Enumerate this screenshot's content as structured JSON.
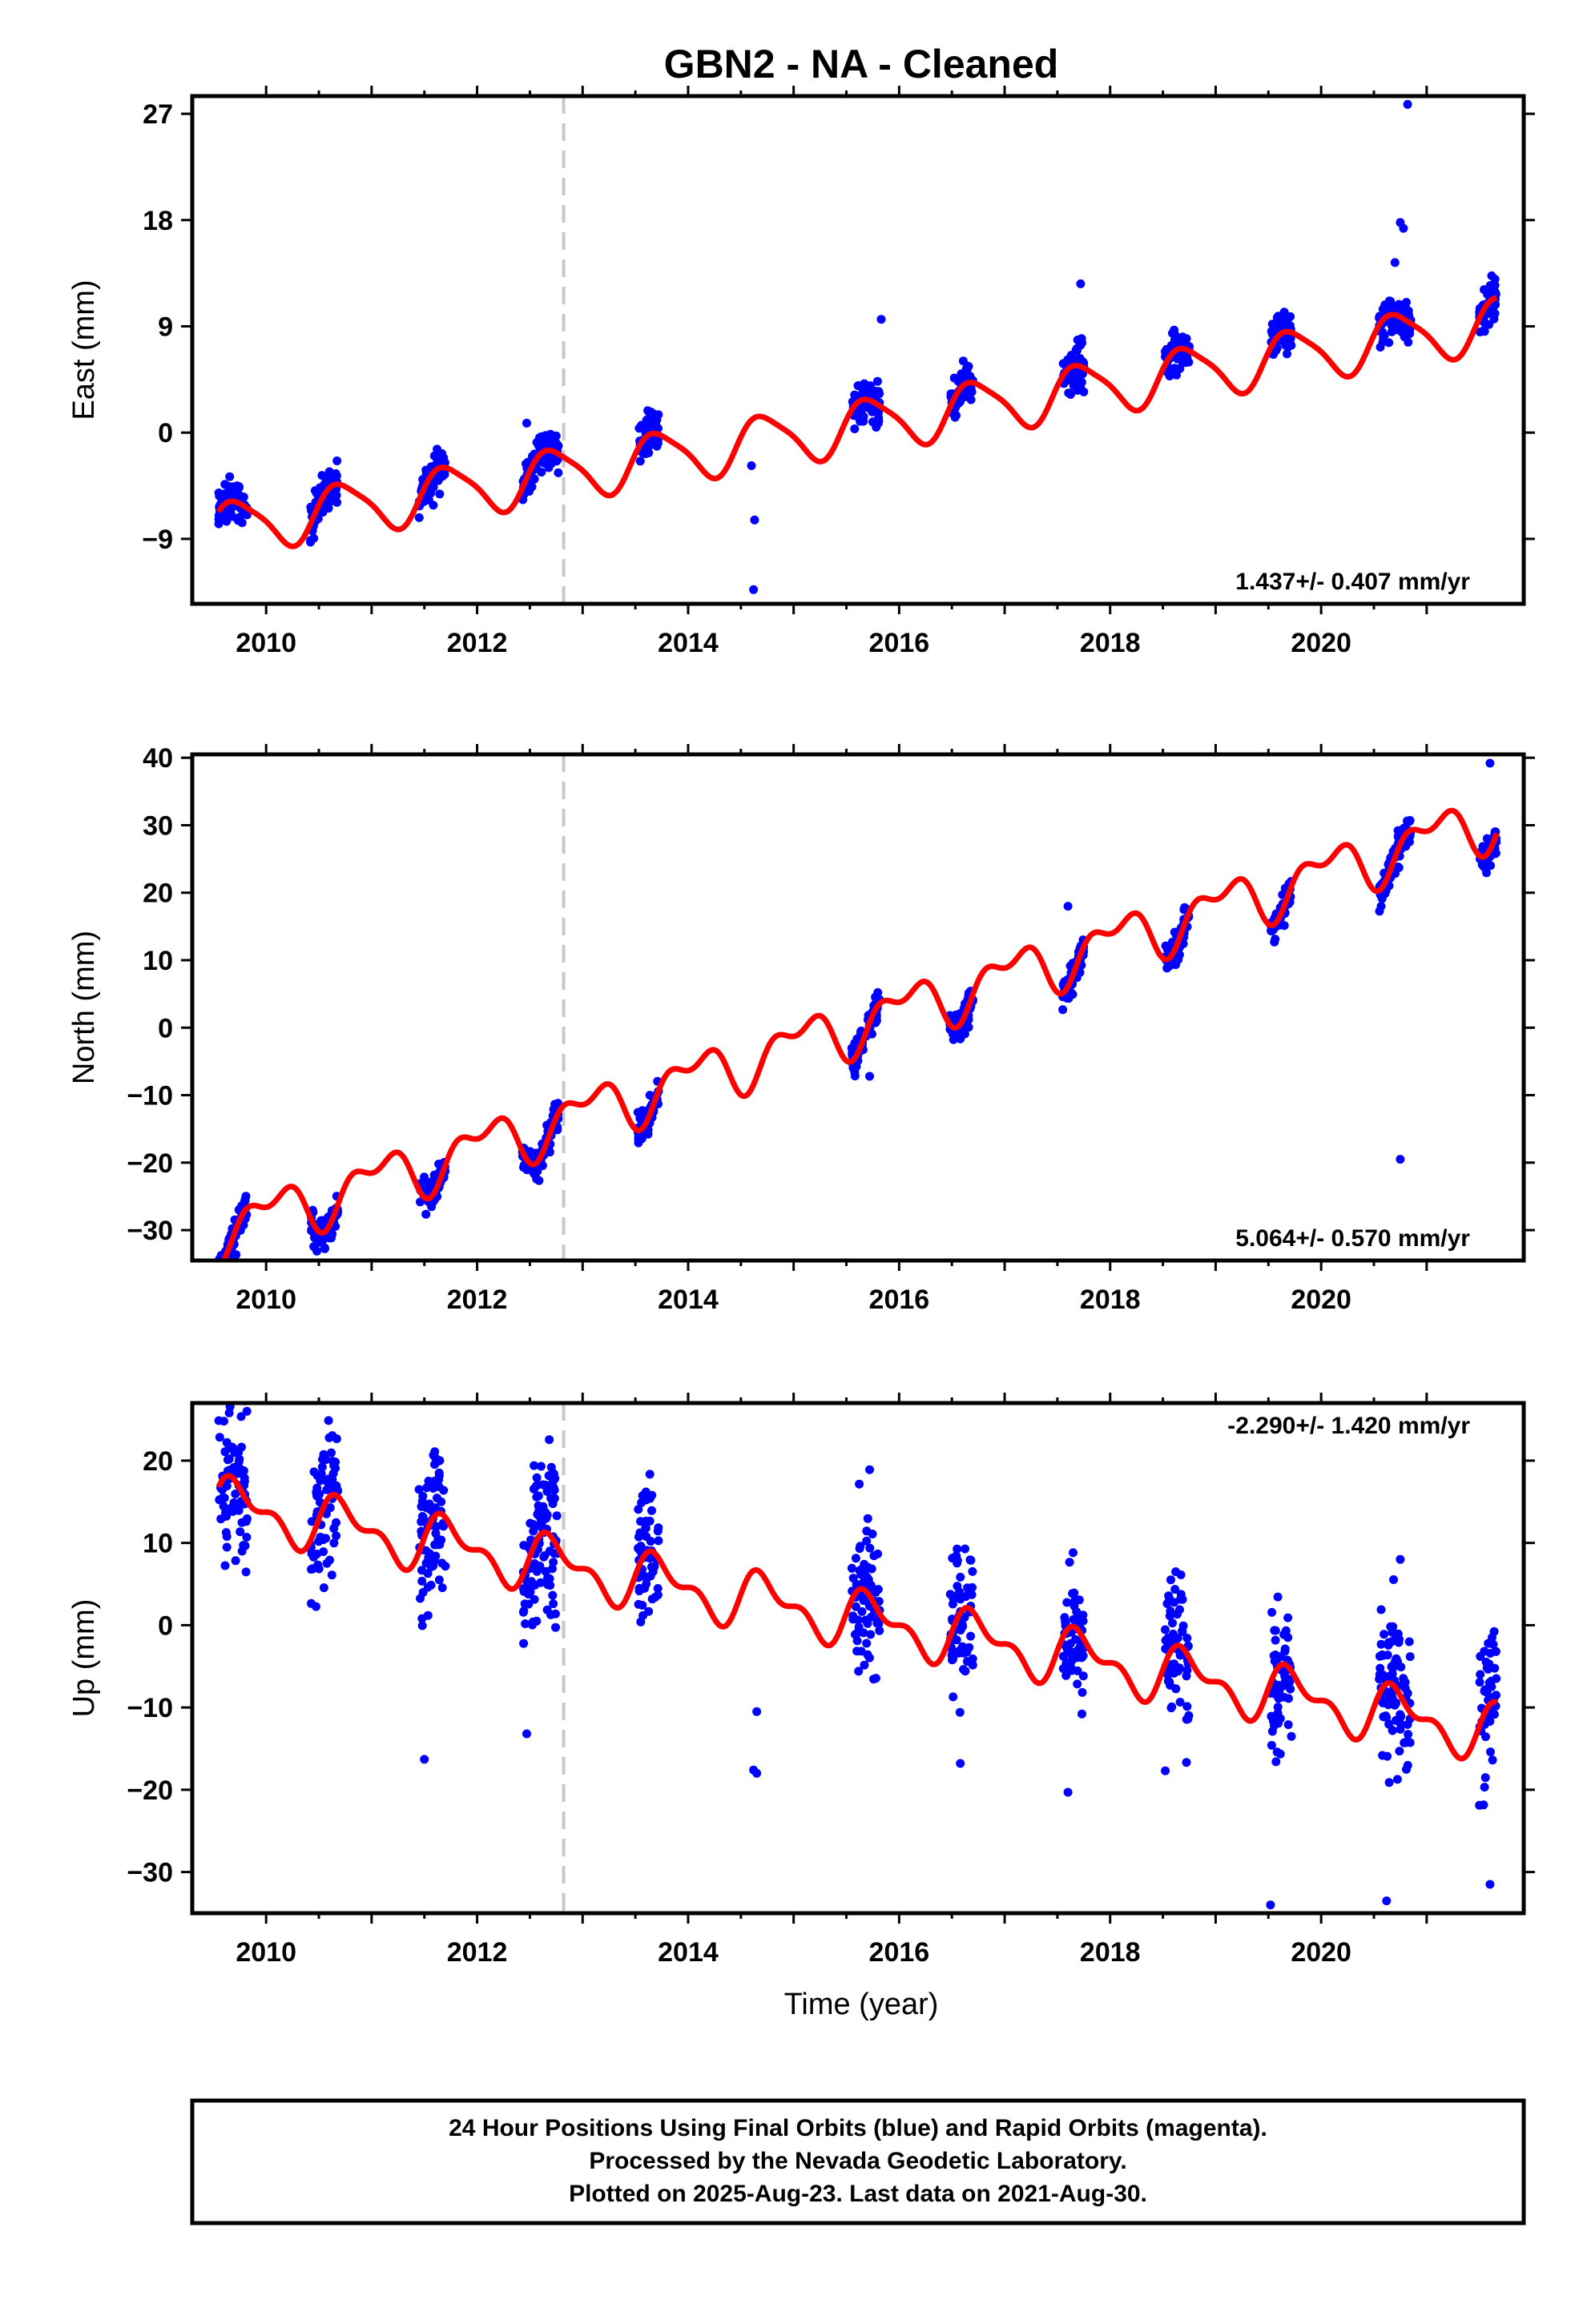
{
  "title": "GBN2  - NA - Cleaned",
  "x_axis_label": "Time (year)",
  "footer": [
    "24 Hour Positions Using Final Orbits (blue) and Rapid Orbits (magenta).",
    "Processed by the Nevada Geodetic Laboratory.",
    "Plotted on 2025-Aug-23. Last data on 2021-Aug-30."
  ],
  "colors": {
    "data_points": "#0000ff",
    "model_fit": "#ff0000",
    "equipment_change_line": "#c8c8c8",
    "frame": "#000000"
  },
  "chart_data": [
    {
      "type": "scatter",
      "component": "east",
      "ylabel": "East (mm)",
      "xlim": [
        2009.3,
        2021.92
      ],
      "ylim": [
        -14.5,
        28.5
      ],
      "xticks": [
        2010,
        2012,
        2014,
        2016,
        2018,
        2020
      ],
      "yticks": [
        -9,
        0,
        9,
        18,
        27
      ],
      "rate_text": "1.437+/- 0.407 mm/yr",
      "rate_position": "bottom-right",
      "offset_line_x": 2012.82,
      "velocity": 1.437,
      "fit": {
        "t0": 2015.5,
        "intercept": 0.4,
        "slope": 1.437,
        "amp1": 2.2,
        "phase1": 3.3,
        "amp2": 0.45,
        "phase2": 0.8
      },
      "scatter": {
        "sigma": 0.9
      },
      "outliers": [
        [
          2020.82,
          27.8
        ],
        [
          2014.62,
          -13.3
        ],
        [
          2014.6,
          -2.8
        ],
        [
          2014.63,
          -7.4
        ],
        [
          2012.47,
          0.8
        ],
        [
          2015.83,
          9.6
        ],
        [
          2017.72,
          12.6
        ],
        [
          2020.75,
          17.8
        ],
        [
          2020.78,
          17.3
        ],
        [
          2019.65,
          10.2
        ],
        [
          2020.7,
          14.4
        ]
      ]
    },
    {
      "type": "scatter",
      "component": "north",
      "ylabel": "North (mm)",
      "xlim": [
        2009.3,
        2021.92
      ],
      "ylim": [
        -34.5,
        40.5
      ],
      "xticks": [
        2010,
        2012,
        2014,
        2016,
        2018,
        2020
      ],
      "yticks": [
        -30,
        -20,
        -10,
        0,
        10,
        20,
        30,
        40
      ],
      "rate_text": "5.064+/- 0.570 mm/yr",
      "rate_position": "bottom-right",
      "offset_line_x": 2012.82,
      "velocity": 5.064,
      "fit": {
        "t0": 2015.5,
        "intercept": 0.0,
        "slope": 5.064,
        "amp1": 3.3,
        "phase1": 1.2,
        "amp2": 2.0,
        "phase2": 4.3
      },
      "scatter": {
        "sigma": 1.2
      },
      "outliers": [
        [
          2017.6,
          18.0
        ],
        [
          2018.7,
          17.5
        ],
        [
          2021.6,
          39.2
        ],
        [
          2015.72,
          -7.2
        ],
        [
          2020.75,
          -19.5
        ]
      ]
    },
    {
      "type": "scatter",
      "component": "up",
      "ylabel": "Up (mm)",
      "xlim": [
        2009.3,
        2021.92
      ],
      "ylim": [
        -35.0,
        27.0
      ],
      "xticks": [
        2010,
        2012,
        2014,
        2016,
        2018,
        2020
      ],
      "yticks": [
        -30,
        -20,
        -10,
        0,
        10,
        20
      ],
      "rate_text": "-2.290+/- 1.420 mm/yr",
      "rate_position": "top-right",
      "offset_line_x": 2012.82,
      "velocity": -2.29,
      "fit": {
        "t0": 2015.5,
        "intercept": 1.0,
        "slope": -2.29,
        "amp1": 2.8,
        "phase1": 3.2,
        "amp2": 1.6,
        "phase2": 0.2
      },
      "scatter": {
        "sigma": 4.5
      },
      "outliers": [
        [
          2009.65,
          25.8
        ],
        [
          2009.6,
          24.8
        ],
        [
          2011.5,
          -16.3
        ],
        [
          2011.45,
          16.5
        ],
        [
          2012.47,
          -13.2
        ],
        [
          2012.72,
          17.5
        ],
        [
          2013.6,
          16.2
        ],
        [
          2015.72,
          18.9
        ],
        [
          2016.58,
          -16.8
        ],
        [
          2017.6,
          -20.3
        ],
        [
          2019.52,
          -34.0
        ],
        [
          2020.62,
          -33.5
        ],
        [
          2020.75,
          8.0
        ],
        [
          2021.6,
          -31.5
        ],
        [
          2021.62,
          -1.5
        ],
        [
          2014.65,
          -18.0
        ],
        [
          2014.62,
          -17.6
        ],
        [
          2014.65,
          -10.5
        ]
      ]
    }
  ]
}
